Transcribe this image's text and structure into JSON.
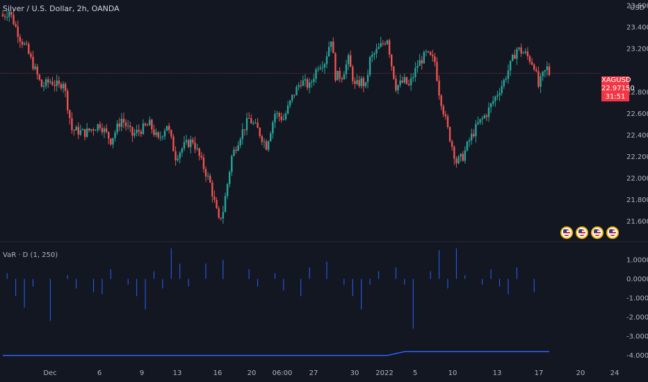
{
  "header": {
    "symbol_title": "Silver / U.S. Dollar, 2h, OANDA",
    "currency": "USD"
  },
  "indicator": {
    "title": "VaR · D (1, 250)"
  },
  "price_tag": {
    "symbol": "XAGUSD",
    "price": "22.97150",
    "countdown": "31:51",
    "color": "#f23645"
  },
  "colors": {
    "background": "#131722",
    "up": "#26a69a",
    "down": "#ef5350",
    "indicator": "#2962ff",
    "axis_text": "#b2b5be",
    "pane_divider": "#2a2e39"
  },
  "chart_data": [
    {
      "type": "candlestick",
      "title": "Silver / U.S. Dollar, 2h, OANDA",
      "ylim": [
        21.45,
        23.6
      ],
      "y_ticks": [
        "23.60000",
        "23.40000",
        "23.20000",
        "22.80000",
        "22.60000",
        "22.40000",
        "22.20000",
        "22.00000",
        "21.80000",
        "21.60000"
      ],
      "x_ticks": [
        "Dec",
        "6",
        "9",
        "13",
        "16",
        "20",
        "06:00",
        "27",
        "30",
        "2022",
        "5",
        "10",
        "13",
        "17",
        "20",
        "24"
      ],
      "last_price": 22.9715,
      "close_path": [
        [
          0,
          23.5
        ],
        [
          3,
          23.55
        ],
        [
          8,
          23.3
        ],
        [
          11,
          23.2
        ],
        [
          15,
          23.0
        ],
        [
          18,
          22.85
        ],
        [
          22,
          22.9
        ],
        [
          26,
          22.85
        ],
        [
          28,
          22.9
        ],
        [
          32,
          22.45
        ],
        [
          38,
          22.42
        ],
        [
          45,
          22.5
        ],
        [
          50,
          22.35
        ],
        [
          55,
          22.55
        ],
        [
          60,
          22.4
        ],
        [
          64,
          22.45
        ],
        [
          68,
          22.5
        ],
        [
          72,
          22.35
        ],
        [
          76,
          22.5
        ],
        [
          80,
          22.2
        ],
        [
          84,
          22.3
        ],
        [
          88,
          22.35
        ],
        [
          92,
          22.15
        ],
        [
          96,
          21.95
        ],
        [
          100,
          21.6
        ],
        [
          102,
          21.7
        ],
        [
          106,
          22.2
        ],
        [
          110,
          22.4
        ],
        [
          114,
          22.55
        ],
        [
          118,
          22.45
        ],
        [
          122,
          22.3
        ],
        [
          126,
          22.6
        ],
        [
          130,
          22.55
        ],
        [
          134,
          22.75
        ],
        [
          138,
          22.9
        ],
        [
          142,
          22.85
        ],
        [
          146,
          23.05
        ],
        [
          149,
          23.08
        ],
        [
          152,
          23.3
        ],
        [
          154,
          22.95
        ],
        [
          157,
          22.95
        ],
        [
          160,
          23.1
        ],
        [
          163,
          22.85
        ],
        [
          166,
          22.9
        ],
        [
          168,
          22.85
        ],
        [
          170,
          23.1
        ],
        [
          174,
          23.2
        ],
        [
          178,
          23.3
        ],
        [
          180,
          23.05
        ],
        [
          182,
          22.85
        ],
        [
          186,
          22.9
        ],
        [
          188,
          22.85
        ],
        [
          192,
          23.05
        ],
        [
          196,
          23.15
        ],
        [
          200,
          23.08
        ],
        [
          202,
          22.8
        ],
        [
          206,
          22.45
        ],
        [
          210,
          22.15
        ],
        [
          213,
          22.2
        ],
        [
          216,
          22.35
        ],
        [
          220,
          22.5
        ],
        [
          224,
          22.6
        ],
        [
          228,
          22.75
        ],
        [
          232,
          22.9
        ],
        [
          236,
          23.1
        ],
        [
          238,
          23.2
        ],
        [
          242,
          23.15
        ],
        [
          246,
          23.05
        ],
        [
          248,
          22.85
        ],
        [
          250,
          22.95
        ],
        [
          252,
          23.02
        ],
        [
          253,
          22.97
        ]
      ]
    },
    {
      "type": "bar",
      "title": "VaR · D (1, 250)",
      "ylim": [
        -4.3,
        1.8
      ],
      "y_ticks": [
        "1.00000",
        "0.00000",
        "-1.00000",
        "-2.00000",
        "-3.00000",
        "-4.00000"
      ],
      "bar_x": [
        2,
        6,
        10,
        14,
        18,
        22,
        26,
        30,
        34,
        38,
        42,
        46,
        50,
        54,
        58,
        62,
        66,
        70,
        74,
        78,
        82,
        86,
        90,
        94,
        98,
        102,
        106,
        110,
        114,
        118,
        122,
        126,
        130,
        134,
        138,
        142,
        146,
        150,
        154,
        158,
        162,
        166,
        170,
        174,
        178,
        182,
        186,
        190,
        194,
        198,
        202,
        206,
        210,
        214,
        218,
        222,
        226,
        230,
        234,
        238,
        242,
        246
      ],
      "values": [
        0.3,
        -0.9,
        -1.5,
        -0.4,
        0.0,
        -2.2,
        0.0,
        0.2,
        -0.5,
        0.0,
        -0.7,
        -0.8,
        0.5,
        0.0,
        -0.3,
        -0.9,
        -1.6,
        0.4,
        -0.5,
        1.6,
        0.8,
        -0.4,
        0.0,
        0.8,
        0.0,
        1.0,
        0.0,
        0.0,
        0.5,
        -0.4,
        0.0,
        0.3,
        -0.6,
        0.0,
        -0.9,
        0.6,
        0.0,
        0.9,
        0.0,
        -0.3,
        -0.9,
        -1.6,
        -0.3,
        0.4,
        0.0,
        0.6,
        -0.3,
        -2.6,
        0.0,
        0.4,
        1.5,
        -0.5,
        1.6,
        0.2,
        0.0,
        -0.3,
        0.5,
        -0.4,
        -0.8,
        0.6,
        0.0,
        -0.7
      ],
      "line": {
        "name": "VaR",
        "points": [
          [
            0,
            -4.0
          ],
          [
            178,
            -4.0
          ],
          [
            186,
            -3.8
          ],
          [
            253,
            -3.8
          ]
        ]
      }
    }
  ]
}
